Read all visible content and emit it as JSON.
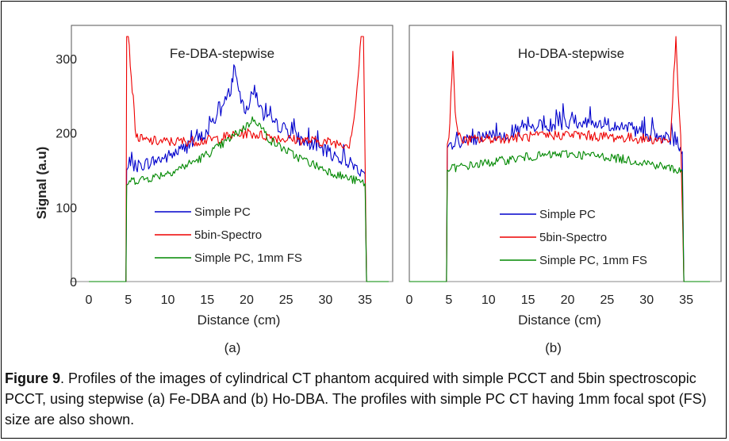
{
  "caption": {
    "figure_label": "Figure 9",
    "text": ". Profiles of the images of cylindrical CT phantom acquired with simple PCCT and 5bin spectroscopic PCCT, using stepwise (a) Fe-DBA and (b) Ho-DBA. The profiles with simple PC CT having 1mm focal spot (FS) size are also shown."
  },
  "chart_data": [
    {
      "type": "line",
      "panel_label": "(a)",
      "title": "Fe-DBA-stepwise",
      "xlabel": "Distance (cm)",
      "ylabel": "Signal (a.u)",
      "xlim": [
        0,
        38
      ],
      "ylim": [
        0,
        330
      ],
      "xticks": [
        0,
        5,
        10,
        15,
        20,
        25,
        30,
        35
      ],
      "yticks": [
        0,
        100,
        200,
        300
      ],
      "legend_position": "bottom-center",
      "series": [
        {
          "name": "Simple PC",
          "color": "#0000cc",
          "x": [
            0,
            4.7,
            4.8,
            5,
            7,
            10,
            13,
            15,
            16,
            17,
            18,
            18.5,
            19,
            20,
            21,
            22,
            23,
            25,
            27,
            30,
            33,
            34.8,
            35,
            35.2,
            38
          ],
          "y": [
            0,
            0,
            150,
            152,
            158,
            168,
            185,
            200,
            220,
            235,
            260,
            295,
            250,
            230,
            260,
            225,
            215,
            205,
            190,
            175,
            160,
            148,
            145,
            0,
            0
          ]
        },
        {
          "name": "5bin-Spectro",
          "color": "#ee0000",
          "x": [
            0,
            4.7,
            4.8,
            5,
            5.5,
            6,
            7,
            10,
            15,
            20,
            25,
            30,
            33,
            33.6,
            34,
            34.5,
            34.8,
            35.2,
            38
          ],
          "y": [
            0,
            0,
            330,
            330,
            260,
            195,
            190,
            188,
            190,
            200,
            192,
            188,
            185,
            220,
            260,
            330,
            330,
            0,
            0
          ]
        },
        {
          "name": "Simple PC, 1mm FS",
          "color": "#008800",
          "x": [
            0,
            4.7,
            4.8,
            5,
            8,
            11,
            14,
            17,
            20,
            21,
            23,
            26,
            29,
            32,
            35,
            35.2,
            38
          ],
          "y": [
            0,
            0,
            130,
            135,
            140,
            150,
            165,
            185,
            210,
            220,
            190,
            170,
            155,
            142,
            132,
            0,
            0
          ]
        }
      ]
    },
    {
      "type": "line",
      "panel_label": "(b)",
      "title": "Ho-DBA-stepwise",
      "xlabel": "Distance (cm)",
      "ylabel": "",
      "xlim": [
        0,
        38
      ],
      "ylim": [
        0,
        330
      ],
      "xticks": [
        0,
        5,
        10,
        15,
        20,
        25,
        30,
        35
      ],
      "yticks": [],
      "legend_position": "bottom-right",
      "series": [
        {
          "name": "Simple PC",
          "color": "#0000cc",
          "x": [
            0,
            4.7,
            4.8,
            5,
            10,
            15,
            20,
            25,
            30,
            34,
            34.5,
            34.7,
            38
          ],
          "y": [
            0,
            0,
            180,
            182,
            195,
            205,
            215,
            212,
            200,
            185,
            175,
            0,
            0
          ]
        },
        {
          "name": "5bin-Spectro",
          "color": "#ee0000",
          "x": [
            0,
            4.7,
            4.8,
            5,
            5.5,
            5.8,
            6.2,
            7,
            10,
            15,
            20,
            25,
            30,
            33,
            33.7,
            34,
            34.3,
            34.7,
            38
          ],
          "y": [
            0,
            0,
            185,
            190,
            310,
            230,
            195,
            190,
            192,
            195,
            198,
            195,
            192,
            190,
            330,
            250,
            190,
            0,
            0
          ]
        },
        {
          "name": "Simple PC, 1mm FS",
          "color": "#008800",
          "x": [
            0,
            4.7,
            4.8,
            5,
            10,
            15,
            20,
            25,
            30,
            34,
            34.5,
            34.7,
            38
          ],
          "y": [
            0,
            0,
            150,
            152,
            160,
            168,
            172,
            168,
            160,
            150,
            148,
            0,
            0
          ]
        }
      ]
    }
  ]
}
